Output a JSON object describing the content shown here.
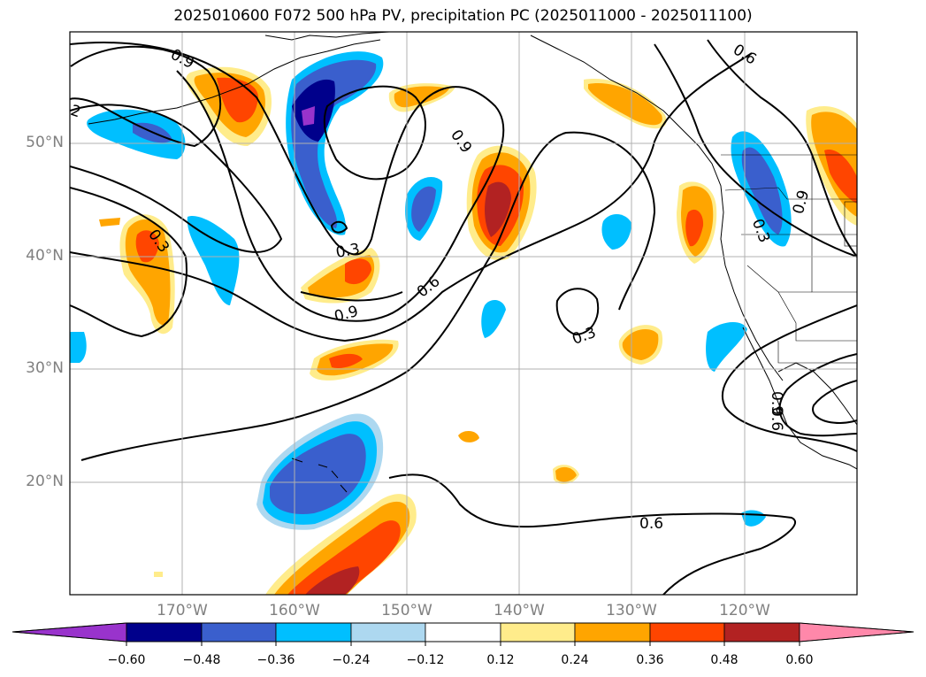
{
  "title": "2025010600 F072 500 hPa PV, precipitation PC (2025011000 - 2025011100)",
  "axes": {
    "lat_ticks": [
      "50°N",
      "40°N",
      "30°N",
      "20°N"
    ],
    "lon_ticks": [
      "170°W",
      "160°W",
      "150°W",
      "140°W",
      "130°W",
      "120°W"
    ]
  },
  "contour_labels": [
    "0.9",
    "2",
    "0.9",
    "0.3",
    "0.6",
    "0.9",
    "0.3",
    "0.3",
    "0.6",
    "0.9",
    "0.3",
    "0.9",
    "0.6",
    "0.6"
  ],
  "colorbar": {
    "ticks": [
      "−0.60",
      "−0.48",
      "−0.36",
      "−0.24",
      "−0.12",
      "0.12",
      "0.24",
      "0.36",
      "0.48",
      "0.60"
    ],
    "colors": [
      "#9933cc",
      "#00008b",
      "#3a5fcd",
      "#00bfff",
      "#add8f0",
      "#ffffff",
      "#ffec8b",
      "#ffa500",
      "#ff4500",
      "#b22222",
      "#ff88aa"
    ]
  }
}
